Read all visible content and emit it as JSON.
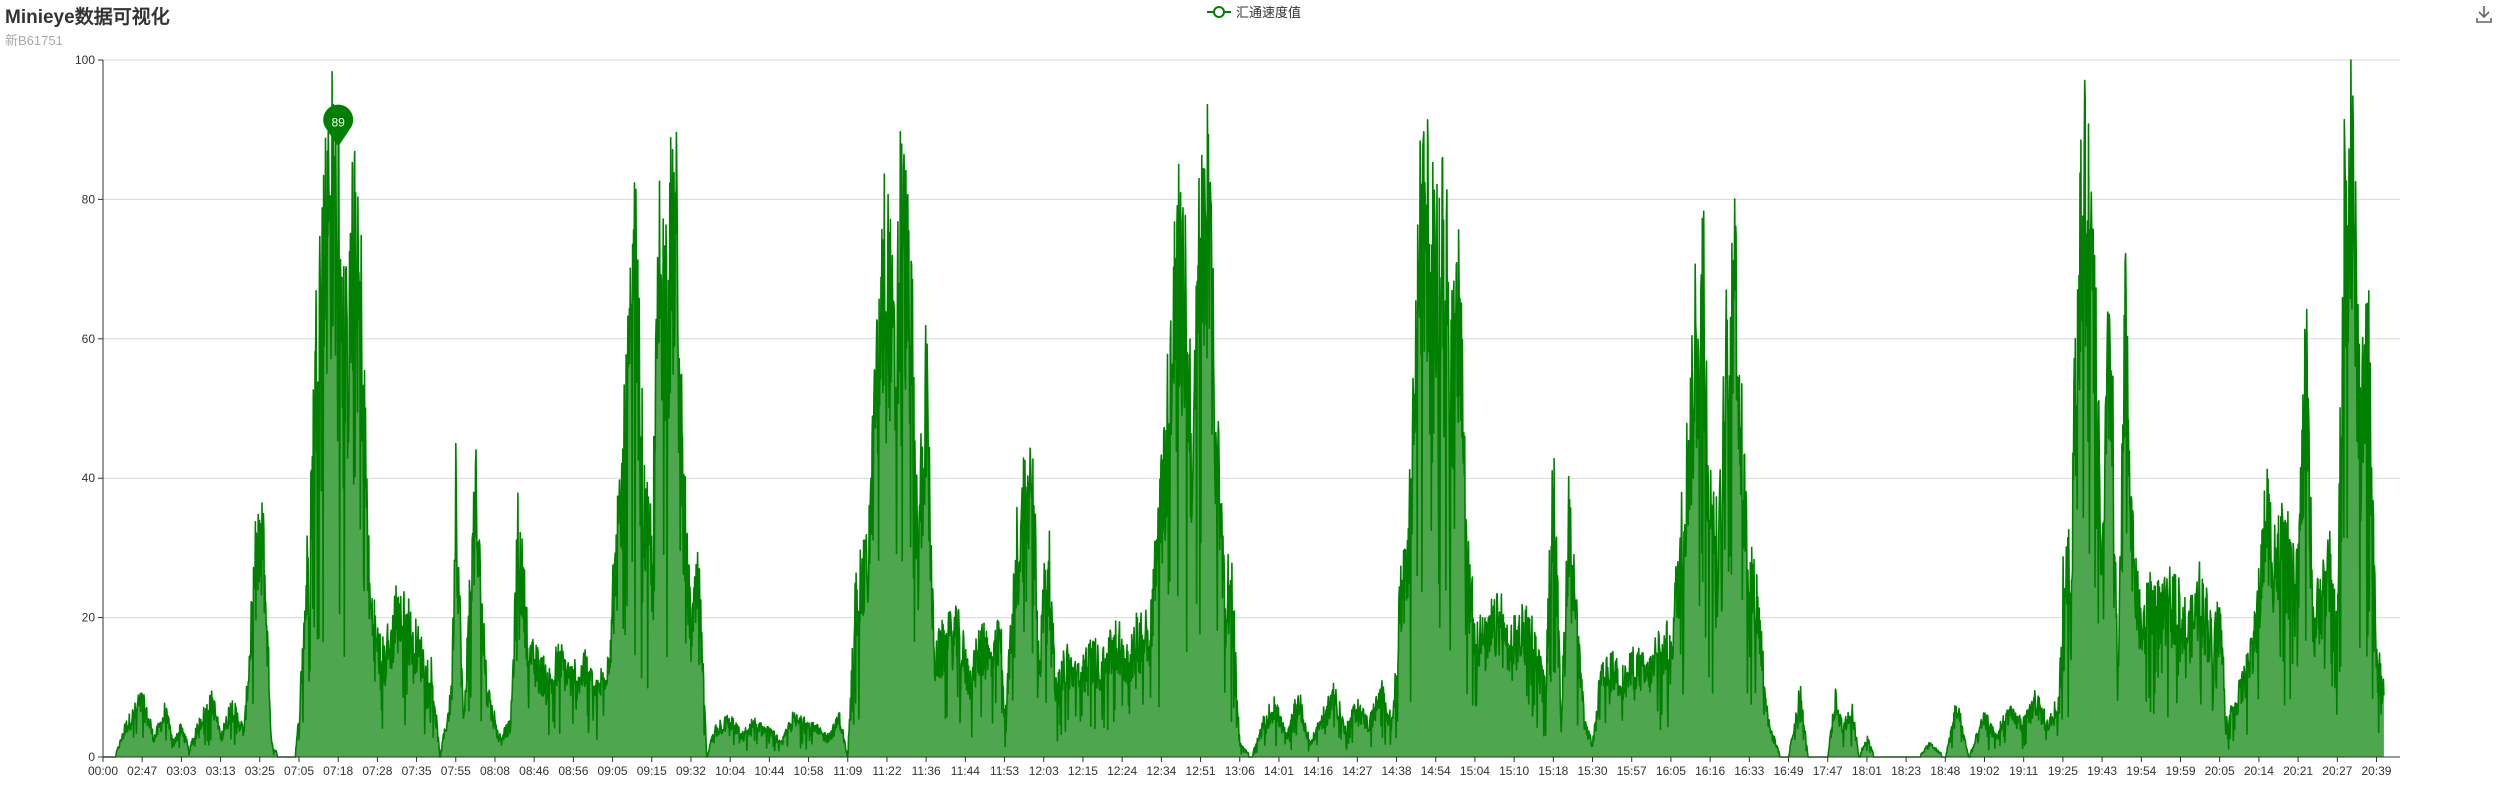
{
  "title": "Minieye数据可视化",
  "subtitle": "新B61751",
  "toolbox": {
    "download_icon": "download-icon"
  },
  "colors": {
    "series": "#008000",
    "area": "#4ea64e",
    "grid": "#d9d9d9",
    "axis": "#333333",
    "marker": "#008000"
  },
  "chart_data": {
    "type": "area",
    "title": "Minieye数据可视化",
    "subtitle": "新B61751",
    "legend": {
      "position": "top-center"
    },
    "grid": true,
    "ylim": [
      0,
      100
    ],
    "y_ticks": [
      "0",
      "20",
      "40",
      "60",
      "80",
      "100"
    ],
    "x_ticks": [
      "00:00",
      "02:47",
      "03:03",
      "03:13",
      "03:25",
      "07:05",
      "07:18",
      "07:28",
      "07:35",
      "07:55",
      "08:08",
      "08:46",
      "08:56",
      "09:05",
      "09:15",
      "09:32",
      "10:04",
      "10:44",
      "10:58",
      "11:09",
      "11:22",
      "11:36",
      "11:44",
      "11:53",
      "12:03",
      "12:15",
      "12:24",
      "12:34",
      "12:51",
      "13:06",
      "14:01",
      "14:16",
      "14:27",
      "14:38",
      "14:54",
      "15:04",
      "15:10",
      "15:18",
      "15:30",
      "15:57",
      "16:05",
      "16:16",
      "16:33",
      "16:49",
      "17:47",
      "18:01",
      "18:23",
      "18:48",
      "19:02",
      "19:11",
      "19:25",
      "19:43",
      "19:54",
      "19:59",
      "20:05",
      "20:14",
      "20:21",
      "20:27",
      "20:39"
    ],
    "markpoint": {
      "label": "89",
      "value": 89,
      "x_index": 6.0
    },
    "series": [
      {
        "name": "汇通速度值",
        "profile": [
          [
            0.0,
            0
          ],
          [
            0.3,
            0
          ],
          [
            0.6,
            5
          ],
          [
            1.0,
            9
          ],
          [
            1.3,
            3
          ],
          [
            1.6,
            7
          ],
          [
            1.8,
            2
          ],
          [
            2.0,
            5
          ],
          [
            2.2,
            1
          ],
          [
            2.5,
            6
          ],
          [
            2.8,
            9
          ],
          [
            3.0,
            3
          ],
          [
            3.3,
            8
          ],
          [
            3.6,
            4
          ],
          [
            3.9,
            30
          ],
          [
            4.1,
            33
          ],
          [
            4.3,
            2
          ],
          [
            4.5,
            0
          ],
          [
            4.9,
            0
          ],
          [
            5.0,
            6
          ],
          [
            5.3,
            40
          ],
          [
            5.5,
            75
          ],
          [
            5.8,
            85
          ],
          [
            6.0,
            89
          ],
          [
            6.2,
            60
          ],
          [
            6.4,
            78
          ],
          [
            6.6,
            70
          ],
          [
            6.8,
            25
          ],
          [
            7.0,
            18
          ],
          [
            7.2,
            15
          ],
          [
            7.5,
            22
          ],
          [
            7.8,
            20
          ],
          [
            8.0,
            18
          ],
          [
            8.4,
            12
          ],
          [
            8.6,
            0
          ],
          [
            8.9,
            10
          ],
          [
            9.0,
            42
          ],
          [
            9.2,
            5
          ],
          [
            9.5,
            40
          ],
          [
            9.8,
            10
          ],
          [
            10.1,
            3
          ],
          [
            10.4,
            5
          ],
          [
            10.6,
            35
          ],
          [
            10.9,
            15
          ],
          [
            11.1,
            14
          ],
          [
            11.4,
            12
          ],
          [
            11.7,
            15
          ],
          [
            12.0,
            12
          ],
          [
            12.3,
            14
          ],
          [
            12.6,
            10
          ],
          [
            12.9,
            16
          ],
          [
            13.2,
            38
          ],
          [
            13.4,
            60
          ],
          [
            13.6,
            75
          ],
          [
            13.8,
            40
          ],
          [
            14.0,
            30
          ],
          [
            14.2,
            80
          ],
          [
            14.4,
            70
          ],
          [
            14.6,
            85
          ],
          [
            14.8,
            40
          ],
          [
            15.0,
            20
          ],
          [
            15.2,
            28
          ],
          [
            15.4,
            0
          ],
          [
            15.6,
            4
          ],
          [
            16.0,
            6
          ],
          [
            16.3,
            3
          ],
          [
            16.6,
            5
          ],
          [
            17.0,
            4
          ],
          [
            17.3,
            2
          ],
          [
            17.6,
            6
          ],
          [
            18.0,
            5
          ],
          [
            18.5,
            3
          ],
          [
            18.8,
            6
          ],
          [
            19.0,
            0
          ],
          [
            19.2,
            25
          ],
          [
            19.5,
            30
          ],
          [
            19.8,
            65
          ],
          [
            20.0,
            80
          ],
          [
            20.2,
            60
          ],
          [
            20.4,
            85
          ],
          [
            20.6,
            70
          ],
          [
            20.8,
            30
          ],
          [
            21.0,
            60
          ],
          [
            21.2,
            15
          ],
          [
            21.5,
            18
          ],
          [
            21.8,
            20
          ],
          [
            22.1,
            12
          ],
          [
            22.4,
            18
          ],
          [
            22.7,
            15
          ],
          [
            22.9,
            20
          ],
          [
            23.0,
            5
          ],
          [
            23.3,
            30
          ],
          [
            23.5,
            40
          ],
          [
            23.7,
            45
          ],
          [
            23.9,
            15
          ],
          [
            24.1,
            35
          ],
          [
            24.3,
            10
          ],
          [
            24.6,
            15
          ],
          [
            24.9,
            12
          ],
          [
            25.2,
            16
          ],
          [
            25.5,
            14
          ],
          [
            25.8,
            18
          ],
          [
            26.1,
            15
          ],
          [
            26.4,
            18
          ],
          [
            26.7,
            20
          ],
          [
            27.0,
            40
          ],
          [
            27.2,
            55
          ],
          [
            27.4,
            80
          ],
          [
            27.6,
            70
          ],
          [
            27.8,
            45
          ],
          [
            28.0,
            80
          ],
          [
            28.2,
            85
          ],
          [
            28.4,
            50
          ],
          [
            28.6,
            30
          ],
          [
            28.8,
            25
          ],
          [
            29.0,
            2
          ],
          [
            29.3,
            0
          ],
          [
            29.6,
            5
          ],
          [
            29.9,
            8
          ],
          [
            30.2,
            3
          ],
          [
            30.5,
            9
          ],
          [
            30.8,
            2
          ],
          [
            31.1,
            6
          ],
          [
            31.4,
            10
          ],
          [
            31.7,
            4
          ],
          [
            32.0,
            8
          ],
          [
            32.3,
            5
          ],
          [
            32.6,
            10
          ],
          [
            32.9,
            5
          ],
          [
            33.1,
            25
          ],
          [
            33.3,
            30
          ],
          [
            33.6,
            80
          ],
          [
            33.8,
            85
          ],
          [
            34.0,
            75
          ],
          [
            34.2,
            80
          ],
          [
            34.4,
            60
          ],
          [
            34.6,
            70
          ],
          [
            34.8,
            30
          ],
          [
            35.0,
            20
          ],
          [
            35.3,
            18
          ],
          [
            35.6,
            22
          ],
          [
            35.9,
            16
          ],
          [
            36.2,
            20
          ],
          [
            36.5,
            18
          ],
          [
            36.8,
            10
          ],
          [
            37.0,
            45
          ],
          [
            37.2,
            5
          ],
          [
            37.4,
            40
          ],
          [
            37.6,
            20
          ],
          [
            37.8,
            5
          ],
          [
            38.0,
            2
          ],
          [
            38.2,
            12
          ],
          [
            38.5,
            14
          ],
          [
            38.8,
            12
          ],
          [
            39.1,
            15
          ],
          [
            39.4,
            13
          ],
          [
            39.7,
            16
          ],
          [
            40.0,
            18
          ],
          [
            40.2,
            30
          ],
          [
            40.4,
            45
          ],
          [
            40.6,
            60
          ],
          [
            40.8,
            75
          ],
          [
            41.0,
            40
          ],
          [
            41.2,
            30
          ],
          [
            41.4,
            60
          ],
          [
            41.6,
            80
          ],
          [
            41.8,
            50
          ],
          [
            42.0,
            28
          ],
          [
            42.2,
            25
          ],
          [
            42.5,
            5
          ],
          [
            42.8,
            0
          ],
          [
            43.0,
            0
          ],
          [
            43.3,
            10
          ],
          [
            43.5,
            0
          ],
          [
            44.0,
            0
          ],
          [
            44.2,
            9
          ],
          [
            44.4,
            4
          ],
          [
            44.6,
            8
          ],
          [
            44.8,
            0
          ],
          [
            45.0,
            3
          ],
          [
            45.2,
            0
          ],
          [
            46.0,
            0
          ],
          [
            46.3,
            0
          ],
          [
            46.6,
            2
          ],
          [
            47.0,
            0
          ],
          [
            47.3,
            8
          ],
          [
            47.6,
            0
          ],
          [
            48.0,
            6
          ],
          [
            48.3,
            3
          ],
          [
            48.6,
            7
          ],
          [
            49.0,
            5
          ],
          [
            49.3,
            9
          ],
          [
            49.6,
            5
          ],
          [
            49.9,
            8
          ],
          [
            50.0,
            25
          ],
          [
            50.2,
            30
          ],
          [
            50.4,
            80
          ],
          [
            50.6,
            85
          ],
          [
            50.8,
            70
          ],
          [
            51.0,
            30
          ],
          [
            51.2,
            70
          ],
          [
            51.4,
            10
          ],
          [
            51.6,
            70
          ],
          [
            51.8,
            30
          ],
          [
            52.0,
            20
          ],
          [
            52.3,
            25
          ],
          [
            52.6,
            22
          ],
          [
            52.9,
            25
          ],
          [
            53.2,
            20
          ],
          [
            53.5,
            25
          ],
          [
            53.8,
            18
          ],
          [
            54.0,
            22
          ],
          [
            54.2,
            5
          ],
          [
            54.5,
            10
          ],
          [
            54.8,
            15
          ],
          [
            55.0,
            25
          ],
          [
            55.2,
            40
          ],
          [
            55.4,
            30
          ],
          [
            55.6,
            35
          ],
          [
            55.8,
            28
          ],
          [
            56.0,
            30
          ],
          [
            56.2,
            60
          ],
          [
            56.4,
            20
          ],
          [
            56.6,
            25
          ],
          [
            56.8,
            30
          ],
          [
            57.0,
            18
          ],
          [
            57.2,
            88
          ],
          [
            57.4,
            89
          ],
          [
            57.6,
            50
          ],
          [
            57.8,
            65
          ],
          [
            58.0,
            15
          ],
          [
            58.2,
            10
          ]
        ]
      }
    ]
  }
}
